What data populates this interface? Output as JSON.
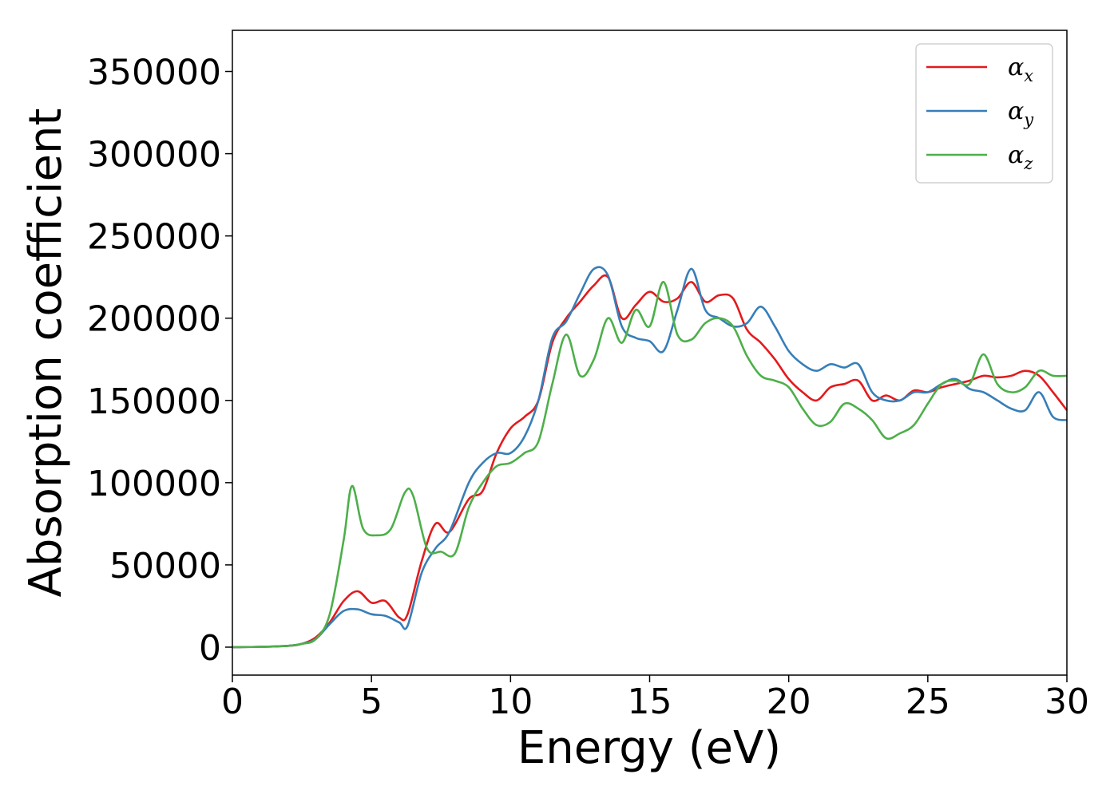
{
  "chart_data": {
    "type": "line",
    "title": "",
    "xlabel": "Energy (eV)",
    "ylabel": "Absorption coefficient",
    "xlim": [
      0,
      30
    ],
    "ylim": [
      -17000,
      375000
    ],
    "xticks": [
      0,
      5,
      10,
      15,
      20,
      25,
      30
    ],
    "yticks": [
      0,
      50000,
      100000,
      150000,
      200000,
      250000,
      300000,
      350000
    ],
    "grid": false,
    "legend_position": "top-right",
    "series": [
      {
        "name": "αx",
        "symbol": "α",
        "subscript": "x",
        "color": "#e41a1c",
        "x": [
          0,
          1,
          2,
          2.5,
          3,
          3.5,
          4,
          4.5,
          5,
          5.5,
          6,
          6.3,
          6.8,
          7.3,
          7.8,
          8.5,
          9,
          9.5,
          10,
          10.5,
          11,
          11.5,
          12,
          12.5,
          13,
          13.5,
          14,
          14.5,
          15,
          15.5,
          16,
          16.5,
          17,
          17.5,
          18,
          18.5,
          19,
          19.5,
          20,
          20.5,
          21,
          21.5,
          22,
          22.5,
          23,
          23.5,
          24,
          24.5,
          25,
          25.5,
          26,
          26.5,
          27,
          27.5,
          28,
          28.5,
          29,
          29.5,
          30
        ],
        "values": [
          0,
          200,
          800,
          2000,
          6000,
          15000,
          28000,
          34000,
          27000,
          28000,
          18000,
          20000,
          52000,
          75000,
          70000,
          90000,
          95000,
          118000,
          133000,
          140000,
          150000,
          185000,
          200000,
          210000,
          220000,
          225000,
          200000,
          208000,
          216000,
          210000,
          212000,
          222000,
          210000,
          214000,
          212000,
          193000,
          185000,
          175000,
          163000,
          155000,
          150000,
          158000,
          160000,
          162000,
          150000,
          153000,
          150000,
          156000,
          155000,
          158000,
          160000,
          162000,
          165000,
          164000,
          165000,
          168000,
          165000,
          155000,
          144000
        ]
      },
      {
        "name": "αy",
        "symbol": "α",
        "subscript": "y",
        "color": "#377eb8",
        "x": [
          0,
          1,
          2,
          2.5,
          3,
          3.5,
          4,
          4.5,
          5,
          5.5,
          6,
          6.3,
          6.8,
          7.3,
          7.8,
          8.5,
          9,
          9.5,
          10,
          10.5,
          11,
          11.5,
          12,
          12.5,
          13,
          13.5,
          14,
          14.5,
          15,
          15.5,
          16,
          16.5,
          17,
          17.5,
          18,
          18.5,
          19,
          19.5,
          20,
          20.5,
          21,
          21.5,
          22,
          22.5,
          23,
          23.5,
          24,
          24.5,
          25,
          25.5,
          26,
          26.5,
          27,
          27.5,
          28,
          28.5,
          29,
          29.5,
          30
        ],
        "values": [
          0,
          200,
          800,
          2000,
          5000,
          14000,
          22000,
          23000,
          20000,
          19000,
          15000,
          13000,
          45000,
          60000,
          70000,
          100000,
          112000,
          118000,
          118000,
          128000,
          150000,
          188000,
          198000,
          215000,
          230000,
          226000,
          195000,
          188000,
          186000,
          180000,
          205000,
          230000,
          205000,
          200000,
          195000,
          197000,
          207000,
          195000,
          180000,
          172000,
          168000,
          172000,
          170000,
          172000,
          155000,
          150000,
          150000,
          155000,
          155000,
          160000,
          163000,
          157000,
          155000,
          150000,
          145000,
          144000,
          155000,
          140000,
          138000
        ]
      },
      {
        "name": "αz",
        "symbol": "α",
        "subscript": "z",
        "color": "#4daf4a",
        "x": [
          0,
          1,
          2,
          2.5,
          3,
          3.5,
          4,
          4.3,
          4.7,
          5.2,
          5.7,
          6.2,
          6.5,
          7,
          7.5,
          8,
          8.5,
          9,
          9.5,
          10,
          10.5,
          11,
          11.5,
          12,
          12.5,
          13,
          13.5,
          14,
          14.5,
          15,
          15.5,
          16,
          16.5,
          17,
          17.5,
          18,
          18.5,
          19,
          19.5,
          20,
          20.5,
          21,
          21.5,
          22,
          22.5,
          23,
          23.5,
          24,
          24.5,
          25,
          25.5,
          26,
          26.5,
          27,
          27.5,
          28,
          28.5,
          29,
          29.5,
          30
        ],
        "values": [
          0,
          200,
          800,
          2000,
          5000,
          20000,
          65000,
          98000,
          72000,
          68000,
          72000,
          94000,
          92000,
          60000,
          58000,
          57000,
          85000,
          100000,
          110000,
          112000,
          118000,
          125000,
          160000,
          190000,
          165000,
          175000,
          200000,
          185000,
          205000,
          195000,
          222000,
          190000,
          187000,
          197000,
          200000,
          195000,
          177000,
          165000,
          162000,
          158000,
          145000,
          135000,
          137000,
          148000,
          145000,
          138000,
          127000,
          130000,
          135000,
          148000,
          160000,
          162000,
          160000,
          178000,
          160000,
          155000,
          158000,
          168000,
          165000,
          165000
        ]
      }
    ]
  }
}
